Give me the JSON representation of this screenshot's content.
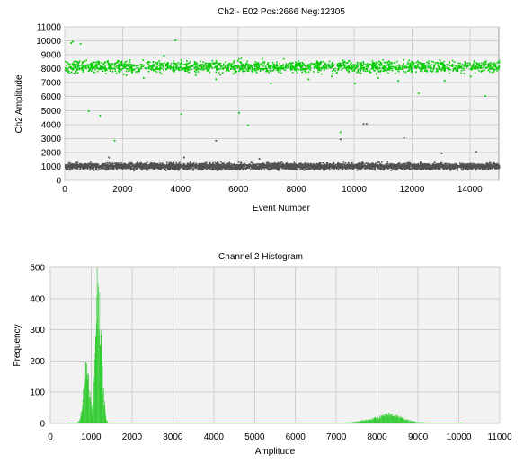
{
  "chart_data": [
    {
      "type": "scatter",
      "title": "Ch2 - E02 Pos:2666 Neg:12305",
      "xlabel": "Event Number",
      "ylabel": "Ch2 Amplitude",
      "xlim": [
        0,
        15000
      ],
      "ylim": [
        0,
        11000
      ],
      "xticks": [
        0,
        2000,
        4000,
        6000,
        8000,
        10000,
        12000,
        14000
      ],
      "yticks": [
        0,
        1000,
        2000,
        3000,
        4000,
        5000,
        6000,
        7000,
        8000,
        9000,
        10000,
        11000
      ],
      "grid": true,
      "series": [
        {
          "name": "Pos",
          "count": 2666,
          "color": "#00cc00",
          "band": [
            7600,
            8900
          ],
          "center": 8200,
          "outliers": [
            [
              200,
              9900
            ],
            [
              250,
              10000
            ],
            [
              520,
              9850
            ],
            [
              800,
              5000
            ],
            [
              1000,
              7800
            ],
            [
              1200,
              4700
            ],
            [
              1700,
              2900
            ],
            [
              2100,
              7600
            ],
            [
              2700,
              7400
            ],
            [
              3400,
              9000
            ],
            [
              3800,
              10100
            ],
            [
              4000,
              4800
            ],
            [
              4500,
              7600
            ],
            [
              5200,
              7300
            ],
            [
              6000,
              4900
            ],
            [
              6300,
              4000
            ],
            [
              7100,
              7000
            ],
            [
              8400,
              7300
            ],
            [
              9200,
              7500
            ],
            [
              9500,
              3500
            ],
            [
              10000,
              7000
            ],
            [
              10800,
              7400
            ],
            [
              11500,
              7200
            ],
            [
              12200,
              6300
            ],
            [
              13100,
              7200
            ],
            [
              14000,
              7500
            ],
            [
              14500,
              6100
            ]
          ]
        },
        {
          "name": "Neg",
          "count": 12305,
          "color": "#505050",
          "band": [
            700,
            1400
          ],
          "center": 1050,
          "outliers": [
            [
              1500,
              1700
            ],
            [
              5200,
              2900
            ],
            [
              6700,
              1600
            ],
            [
              9500,
              3000
            ],
            [
              10300,
              4100
            ],
            [
              10400,
              4100
            ],
            [
              11700,
              3100
            ],
            [
              13000,
              2000
            ],
            [
              14200,
              2100
            ],
            [
              4100,
              1700
            ]
          ]
        }
      ]
    },
    {
      "type": "area",
      "title": "Channel 2 Histogram",
      "xlabel": "Amplitude",
      "ylabel": "Frequency",
      "xlim": [
        0,
        11000
      ],
      "ylim": [
        0,
        500
      ],
      "xticks": [
        0,
        1000,
        2000,
        3000,
        4000,
        5000,
        6000,
        7000,
        8000,
        9000,
        10000,
        11000
      ],
      "yticks": [
        0,
        100,
        200,
        300,
        400,
        500
      ],
      "grid": true,
      "color": "#33cc33",
      "series": [
        {
          "name": "Frequency",
          "x": [
            400,
            650,
            700,
            750,
            800,
            850,
            900,
            950,
            1000,
            1050,
            1100,
            1150,
            1200,
            1250,
            1300,
            1350,
            1400,
            1450,
            1500,
            2000,
            3000,
            4000,
            5000,
            6000,
            6500,
            7000,
            7200,
            7400,
            7600,
            7800,
            8000,
            8100,
            8200,
            8300,
            8400,
            8500,
            8600,
            8800,
            9000,
            9500,
            10000,
            10100
          ],
          "y": [
            0,
            1,
            8,
            35,
            90,
            160,
            175,
            120,
            40,
            60,
            300,
            435,
            380,
            220,
            90,
            20,
            4,
            1,
            0,
            0,
            0,
            0,
            0,
            0,
            0,
            1,
            2,
            4,
            8,
            12,
            18,
            22,
            26,
            28,
            27,
            22,
            16,
            8,
            4,
            1,
            0,
            0
          ]
        }
      ]
    }
  ]
}
